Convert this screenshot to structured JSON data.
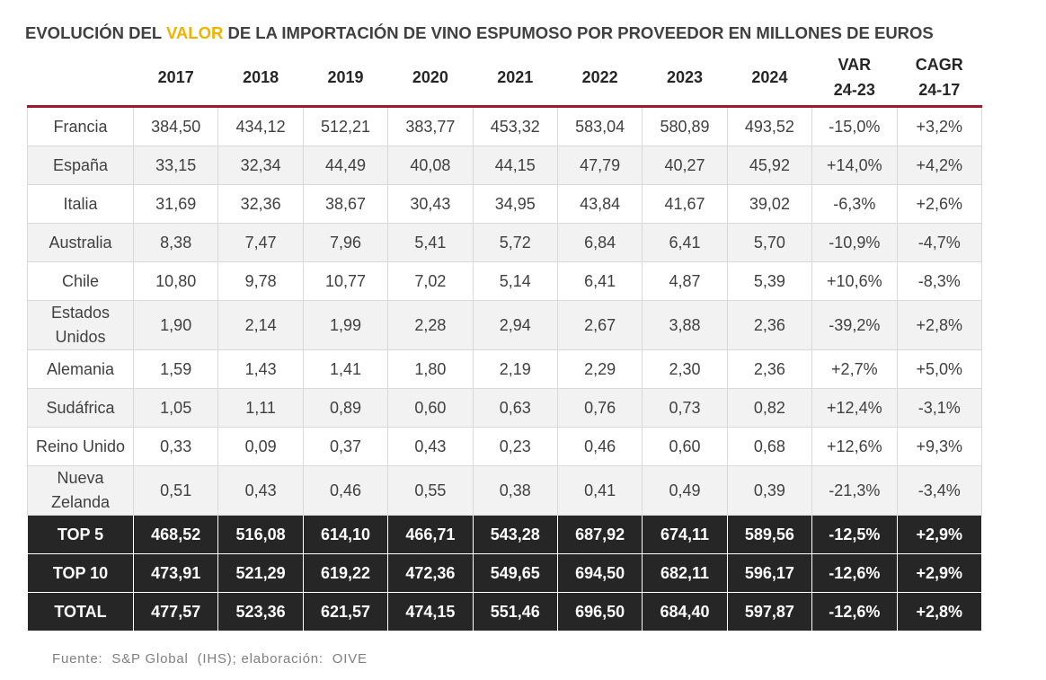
{
  "title": {
    "parts": [
      "EVOLUCIÓN DEL ",
      "VALOR",
      " DE LA IMPORTACIÓN DE VINO ESPUMOSO POR PROVEEDOR EN MILLONES DE EUROS"
    ]
  },
  "table": {
    "header": [
      [
        "2017"
      ],
      [
        "2018"
      ],
      [
        "2019"
      ],
      [
        "2020"
      ],
      [
        "2021"
      ],
      [
        "2022"
      ],
      [
        "2023"
      ],
      [
        "2024"
      ],
      [
        "VAR",
        "24-23"
      ],
      [
        "CAGR",
        "24-17"
      ]
    ],
    "rows": [
      [
        "Francia",
        "384,50",
        "434,12",
        "512,21",
        "383,77",
        "453,32",
        "583,04",
        "580,89",
        "493,52",
        "-15,0%",
        "+3,2%"
      ],
      [
        "España",
        "33,15",
        "32,34",
        "44,49",
        "40,08",
        "44,15",
        "47,79",
        "40,27",
        "45,92",
        "+14,0%",
        "+4,2%"
      ],
      [
        "Italia",
        "31,69",
        "32,36",
        "38,67",
        "30,43",
        "34,95",
        "43,84",
        "41,67",
        "39,02",
        "-6,3%",
        "+2,6%"
      ],
      [
        "Australia",
        "8,38",
        "7,47",
        "7,96",
        "5,41",
        "5,72",
        "6,84",
        "6,41",
        "5,70",
        "-10,9%",
        "-4,7%"
      ],
      [
        "Chile",
        "10,80",
        "9,78",
        "10,77",
        "7,02",
        "5,14",
        "6,41",
        "4,87",
        "5,39",
        "+10,6%",
        "-8,3%"
      ],
      [
        "Estados Unidos",
        "1,90",
        "2,14",
        "1,99",
        "2,28",
        "2,94",
        "2,67",
        "3,88",
        "2,36",
        "-39,2%",
        "+2,8%"
      ],
      [
        "Alemania",
        "1,59",
        "1,43",
        "1,41",
        "1,80",
        "2,19",
        "2,29",
        "2,30",
        "2,36",
        "+2,7%",
        "+5,0%"
      ],
      [
        "Sudáfrica",
        "1,05",
        "1,11",
        "0,89",
        "0,60",
        "0,63",
        "0,76",
        "0,73",
        "0,82",
        "+12,4%",
        "-3,1%"
      ],
      [
        "Reino Unido",
        "0,33",
        "0,09",
        "0,37",
        "0,43",
        "0,23",
        "0,46",
        "0,60",
        "0,68",
        "+12,6%",
        "+9,3%"
      ],
      [
        "Nueva Zelanda",
        "0,51",
        "0,43",
        "0,46",
        "0,55",
        "0,38",
        "0,41",
        "0,49",
        "0,39",
        "-21,3%",
        "-3,4%"
      ]
    ],
    "totals": [
      [
        "TOP 5",
        "468,52",
        "516,08",
        "614,10",
        "466,71",
        "543,28",
        "687,92",
        "674,11",
        "589,56",
        "-12,5%",
        "+2,9%"
      ],
      [
        "TOP 10",
        "473,91",
        "521,29",
        "619,22",
        "472,36",
        "549,65",
        "694,50",
        "682,11",
        "596,17",
        "-12,6%",
        "+2,9%"
      ],
      [
        "TOTAL",
        "477,57",
        "523,36",
        "621,57",
        "474,15",
        "551,46",
        "696,50",
        "684,40",
        "597,87",
        "-12,6%",
        "+2,8%"
      ]
    ]
  },
  "source": "Fuente:  S&P Global  (IHS); elaboración:  OIVE"
}
